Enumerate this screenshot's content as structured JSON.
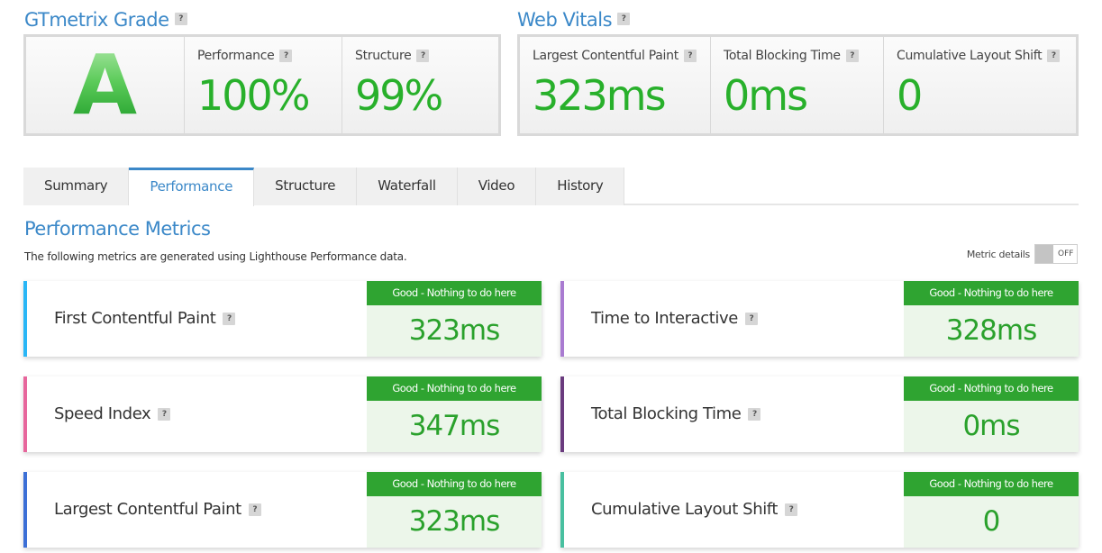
{
  "grade": {
    "title": "GTmetrix Grade",
    "help": "?",
    "letter": "A",
    "performance_label": "Performance",
    "performance_value": "100%",
    "structure_label": "Structure",
    "structure_value": "99%"
  },
  "vitals": {
    "title": "Web Vitals",
    "help": "?",
    "items": [
      {
        "label": "Largest Contentful Paint",
        "value": "323ms"
      },
      {
        "label": "Total Blocking Time",
        "value": "0ms"
      },
      {
        "label": "Cumulative Layout Shift",
        "value": "0"
      }
    ]
  },
  "tabs": [
    {
      "label": "Summary",
      "active": false
    },
    {
      "label": "Performance",
      "active": true
    },
    {
      "label": "Structure",
      "active": false
    },
    {
      "label": "Waterfall",
      "active": false
    },
    {
      "label": "Video",
      "active": false
    },
    {
      "label": "History",
      "active": false
    }
  ],
  "metrics_section": {
    "title": "Performance Metrics",
    "description": "The following metrics are generated using Lighthouse Performance data.",
    "toggle_label": "Metric details",
    "toggle_state": "OFF"
  },
  "metrics": [
    {
      "name": "First Contentful Paint",
      "status": "Good - Nothing to do here",
      "value": "323ms",
      "color": "#29b6f6"
    },
    {
      "name": "Time to Interactive",
      "status": "Good - Nothing to do here",
      "value": "328ms",
      "color": "#a97bd1"
    },
    {
      "name": "Speed Index",
      "status": "Good - Nothing to do here",
      "value": "347ms",
      "color": "#e7669c"
    },
    {
      "name": "Total Blocking Time",
      "status": "Good - Nothing to do here",
      "value": "0ms",
      "color": "#6a3b7e"
    },
    {
      "name": "Largest Contentful Paint",
      "status": "Good - Nothing to do here",
      "value": "323ms",
      "color": "#3b6fd6"
    },
    {
      "name": "Cumulative Layout Shift",
      "status": "Good - Nothing to do here",
      "value": "0",
      "color": "#48c0a0"
    }
  ],
  "colors": {
    "accent": "#3b88c8",
    "good": "#28b02b",
    "badge": "#2fa431"
  }
}
